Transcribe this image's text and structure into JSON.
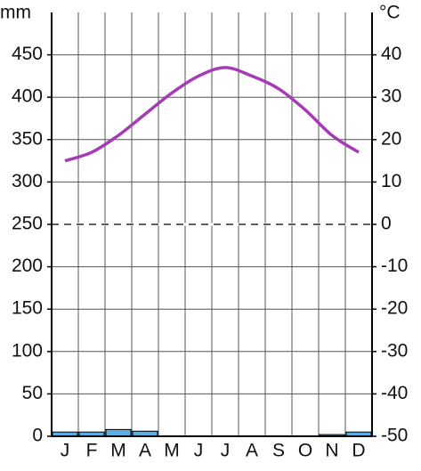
{
  "chart_data": {
    "type": "climate",
    "y_label": "mm",
    "y2_label": "°C",
    "categories": [
      "J",
      "F",
      "M",
      "A",
      "M",
      "J",
      "J",
      "A",
      "S",
      "O",
      "N",
      "D"
    ],
    "series": [
      {
        "type": "bar",
        "color": "#5aaee0",
        "values": [
          5,
          5,
          8,
          6,
          0,
          0,
          0,
          0,
          0,
          0,
          2,
          5
        ]
      },
      {
        "type": "line",
        "axis": "y2",
        "color": "#a63cb5",
        "values": [
          15,
          17,
          21,
          26,
          31,
          35,
          37,
          35,
          32,
          27,
          21,
          17
        ]
      }
    ],
    "ylim": [
      0,
      500
    ],
    "yticks": [
      0,
      50,
      100,
      150,
      200,
      250,
      300,
      350,
      400,
      450
    ],
    "y2lim": [
      -50,
      50
    ],
    "y2ticks": [
      -50,
      -40,
      -30,
      -20,
      -10,
      0,
      10,
      20,
      30,
      40
    ],
    "grid": true,
    "zero_line": true
  }
}
